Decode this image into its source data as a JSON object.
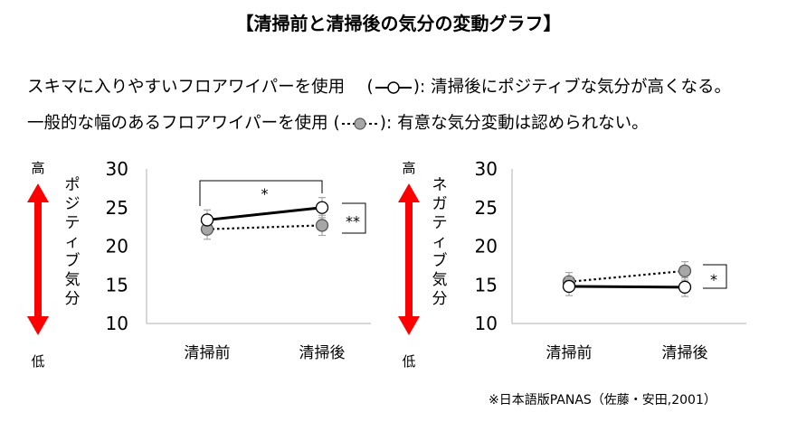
{
  "title": "【清掃前と清掃後の気分の変動グラフ】",
  "legend": [
    {
      "text_before": "スキマに入りやすいフロアワイパーを使用　 (",
      "text_after": "):  清掃後にポジティブな気分が高くなる。",
      "marker": "open",
      "line": "solid"
    },
    {
      "text_before": "一般的な幅のあるフロアワイパーを使用 (",
      "text_after": "):  有意な気分変動は認められない。",
      "marker": "gray",
      "line": "dotted"
    }
  ],
  "source": "※日本語版PANAS（佐藤・安田,2001）",
  "colors": {
    "arrow": "#ff0000",
    "gray_marker": "#a6a6a6",
    "axis": "#bfbfbf",
    "error": "#a6a6a6"
  },
  "chart_data": [
    {
      "type": "line",
      "side_label": "ポジティブ気分",
      "high_label": "高",
      "low_label": "低",
      "categories": [
        "清掃前",
        "清掃後"
      ],
      "ylim": [
        10,
        30
      ],
      "yticks": [
        "10",
        "15",
        "20",
        "25",
        "30"
      ],
      "series": [
        {
          "style": "solid-open",
          "values": [
            23.4,
            25.0
          ],
          "errors": [
            1.3,
            1.3
          ]
        },
        {
          "style": "dotted-gray",
          "values": [
            22.2,
            22.7
          ],
          "errors": [
            1.3,
            1.3
          ]
        }
      ],
      "sig_between_time": "*",
      "sig_between_series": "**"
    },
    {
      "type": "line",
      "side_label": "ネガティブ気分",
      "high_label": "高",
      "low_label": "低",
      "categories": [
        "清掃前",
        "清掃後"
      ],
      "ylim": [
        10,
        30
      ],
      "yticks": [
        "10",
        "15",
        "20",
        "25",
        "30"
      ],
      "series": [
        {
          "style": "solid-open",
          "values": [
            14.8,
            14.7
          ],
          "errors": [
            1.2,
            1.2
          ]
        },
        {
          "style": "dotted-gray",
          "values": [
            15.4,
            16.8
          ],
          "errors": [
            1.2,
            1.2
          ]
        }
      ],
      "sig_between_series": "*"
    }
  ]
}
